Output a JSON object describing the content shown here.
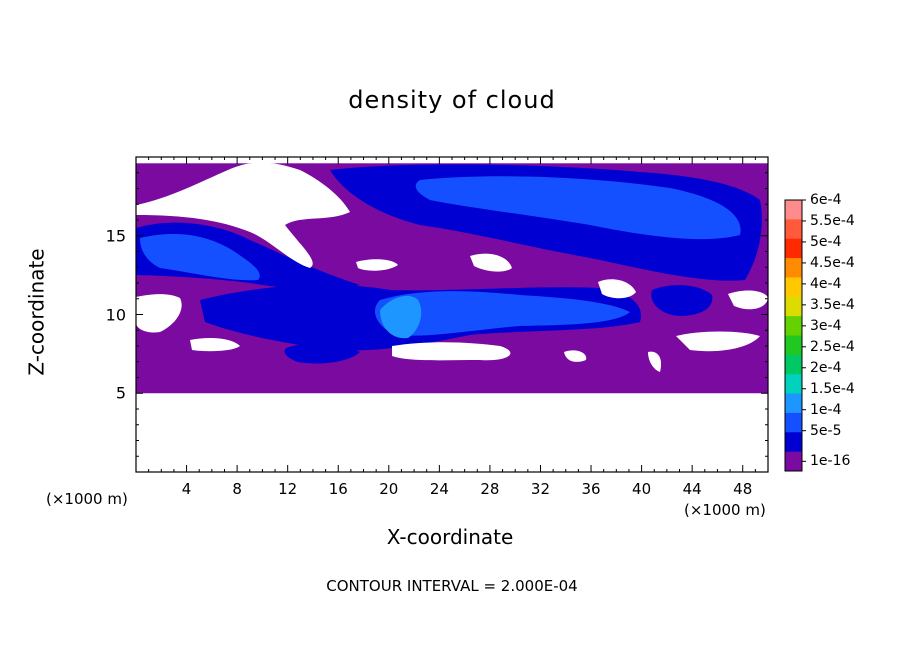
{
  "chart_data": {
    "type": "heatmap",
    "title": "density of cloud",
    "xlabel": "X-coordinate",
    "ylabel": "Z-coordinate",
    "x_unit": "(×1000 m)",
    "y_unit": "(×1000 m)",
    "xlim": [
      0,
      50
    ],
    "ylim": [
      0,
      20
    ],
    "x_ticks": [
      4,
      8,
      12,
      16,
      20,
      24,
      28,
      32,
      36,
      40,
      44,
      48
    ],
    "y_ticks": [
      5,
      10,
      15
    ],
    "footer": "CONTOUR INTERVAL = 2.000E-04",
    "colorbar": {
      "labels": [
        "6e-4",
        "5.5e-4",
        "5e-4",
        "4.5e-4",
        "4e-4",
        "3.5e-4",
        "3e-4",
        "2.5e-4",
        "2e-4",
        "1.5e-4",
        "1e-4",
        "5e-5",
        "1e-16"
      ],
      "colors": [
        "#ff8c8c",
        "#ff5a3c",
        "#ff2a00",
        "#ff8c00",
        "#ffc800",
        "#dcdc00",
        "#64d200",
        "#22c822",
        "#00c864",
        "#00d2be",
        "#1e96ff",
        "#1450ff",
        "#0000d2",
        "#7a0aa0"
      ]
    },
    "cloud_base_km": 5,
    "cloud_top_km": 19.6
  }
}
